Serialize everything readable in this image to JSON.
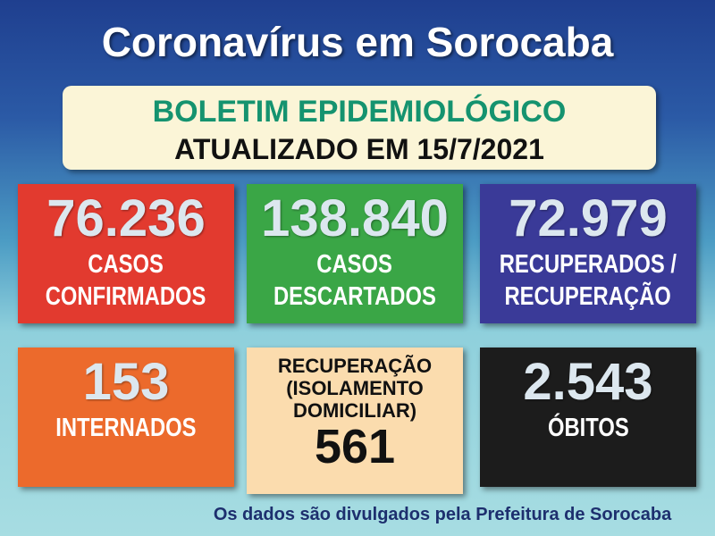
{
  "title": "Coronavírus em Sorocaba",
  "bulletin": {
    "line1": "BOLETIM EPIDEMIOLÓGICO",
    "line2": "ATUALIZADO EM 15/7/2021"
  },
  "cards": [
    {
      "value": "76.236",
      "label_lines": [
        "CASOS",
        "CONFIRMADOS"
      ]
    },
    {
      "value": "138.840",
      "label_lines": [
        "CASOS",
        "DESCARTADOS"
      ]
    },
    {
      "value": "72.979",
      "label_lines": [
        "RECUPERADOS /",
        "RECUPERAÇÃO"
      ]
    },
    {
      "value": "153",
      "label_lines": [
        "INTERNADOS"
      ]
    },
    {
      "value": "561",
      "label_lines": [
        "RECUPERAÇÃO",
        "(ISOLAMENTO",
        "DOMICILIAR)"
      ]
    },
    {
      "value": "2.543",
      "label_lines": [
        "ÓBITOS"
      ]
    }
  ],
  "footer": "Os dados são divulgados pela Prefeitura de Sorocaba"
}
